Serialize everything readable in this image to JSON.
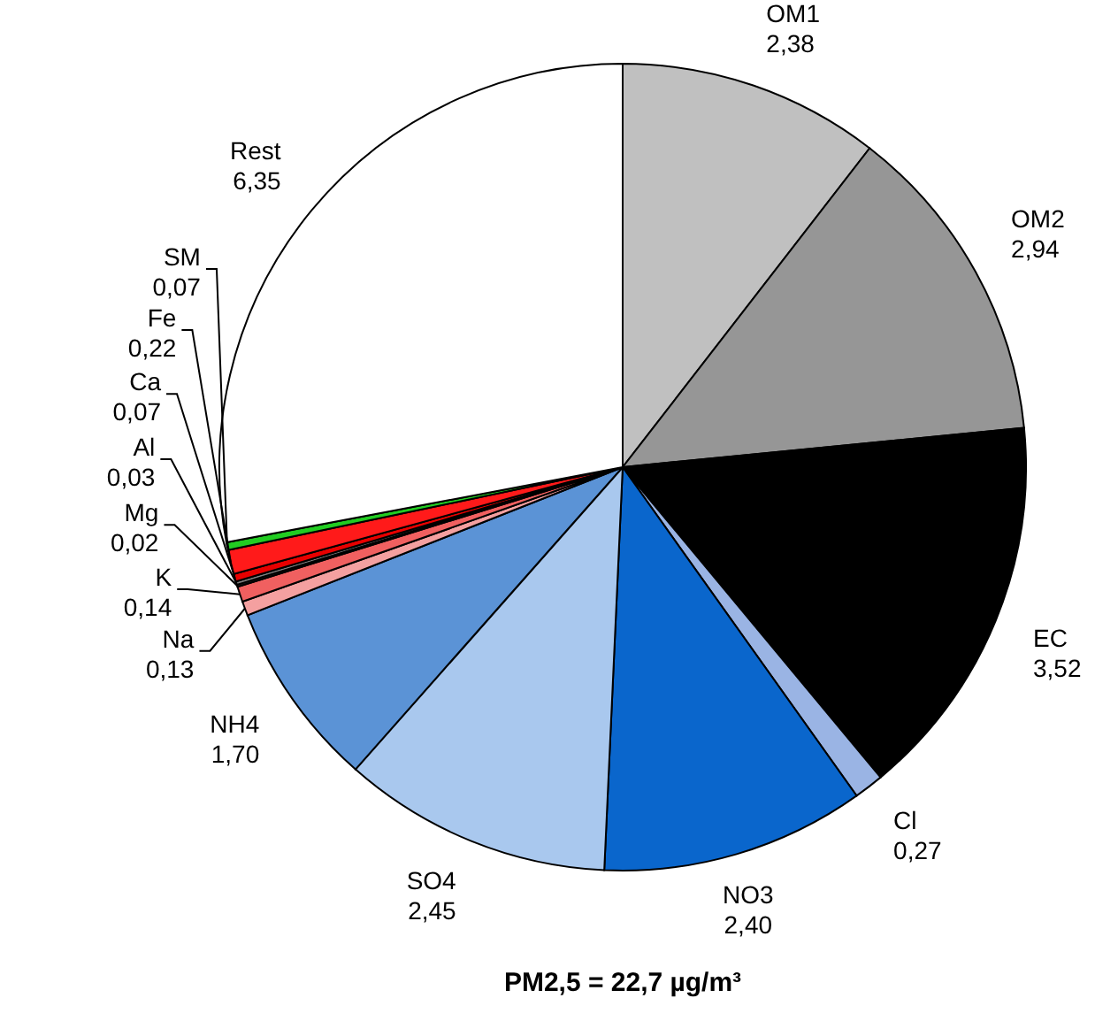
{
  "chart_data": {
    "type": "pie",
    "title": "PM2,5 = 22,7 µg/m³",
    "categories": [
      "OM1",
      "OM2",
      "EC",
      "Cl",
      "NO3",
      "SO4",
      "NH4",
      "Na",
      "K",
      "Mg",
      "Al",
      "Ca",
      "Fe",
      "SM",
      "Rest"
    ],
    "values": [
      2.38,
      2.94,
      3.52,
      0.27,
      2.4,
      2.45,
      1.7,
      0.13,
      0.14,
      0.02,
      0.03,
      0.07,
      0.22,
      0.07,
      6.35
    ],
    "value_labels": [
      "2,38",
      "2,94",
      "3,52",
      "0,27",
      "2,40",
      "2,45",
      "1,70",
      "0,13",
      "0,14",
      "0,02",
      "0,03",
      "0,07",
      "0,22",
      "0,07",
      "6,35"
    ],
    "colors": [
      "#c0c0c0",
      "#969696",
      "#000000",
      "#9ab4e4",
      "#0a66cc",
      "#a9c8ee",
      "#5b93d6",
      "#f4a0a0",
      "#f06060",
      "#202020",
      "#808080",
      "#e80000",
      "#ff1a1a",
      "#22cc22",
      "#ffffff"
    ]
  }
}
